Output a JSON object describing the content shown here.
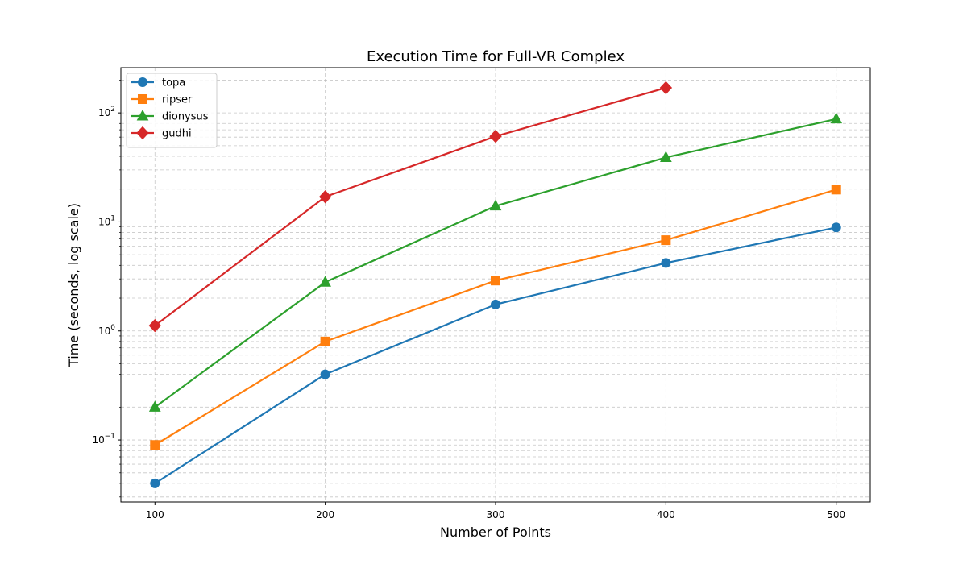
{
  "chart_data": {
    "type": "line",
    "title": "Execution Time for Full-VR Complex",
    "xlabel": "Number of Points",
    "ylabel": "Time (seconds, log scale)",
    "y_scale": "log",
    "x_ticks": [
      100,
      200,
      300,
      400,
      500
    ],
    "y_tick_base": "10",
    "y_tick_exponents": [
      "−1",
      "0",
      "1",
      "2"
    ],
    "xlim": [
      80,
      520
    ],
    "ylim": [
      0.027,
      260
    ],
    "grid": true,
    "legend_position": "top-left",
    "series": [
      {
        "name": "topa",
        "color": "#1f77b4",
        "marker": "circle",
        "x": [
          100,
          200,
          300,
          400,
          500
        ],
        "values": [
          0.04,
          0.4,
          1.75,
          4.2,
          8.9
        ]
      },
      {
        "name": "ripser",
        "color": "#ff7f0e",
        "marker": "square",
        "x": [
          100,
          200,
          300,
          400,
          500
        ],
        "values": [
          0.09,
          0.8,
          2.9,
          6.8,
          19.8
        ]
      },
      {
        "name": "dionysus",
        "color": "#2ca02c",
        "marker": "triangle",
        "x": [
          100,
          200,
          300,
          400,
          500
        ],
        "values": [
          0.2,
          2.8,
          14,
          39,
          88
        ]
      },
      {
        "name": "gudhi",
        "color": "#d62728",
        "marker": "diamond",
        "x": [
          100,
          200,
          300,
          400
        ],
        "values": [
          1.12,
          17,
          61,
          170
        ]
      }
    ]
  }
}
